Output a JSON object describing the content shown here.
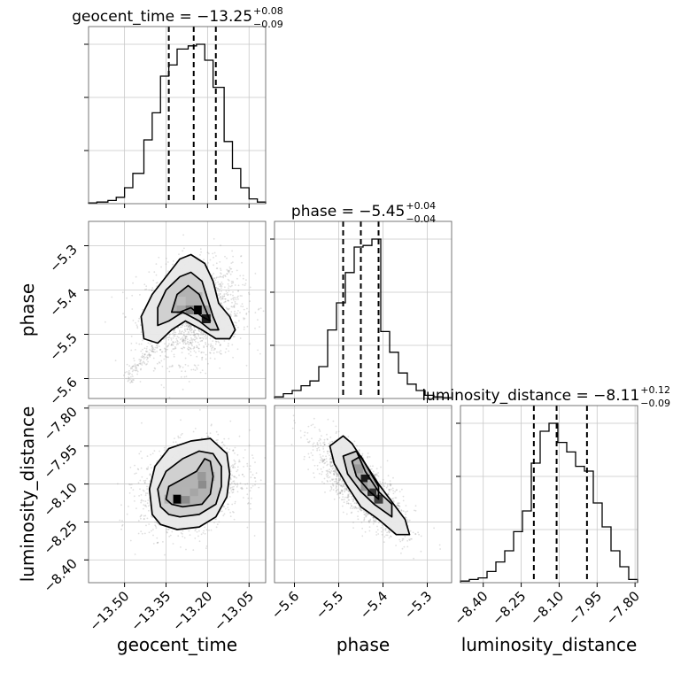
{
  "chart_data": {
    "type": "corner",
    "parameters": [
      "geocent_time",
      "phase",
      "luminosity_distance"
    ],
    "ranges": {
      "geocent_time": [
        -13.63,
        -12.99
      ],
      "phase": [
        -5.645,
        -5.245
      ],
      "luminosity_distance": [
        -8.49,
        -7.79
      ]
    },
    "ticks": {
      "geocent_time": [
        "−13.50",
        "−13.35",
        "−13.20",
        "−13.05"
      ],
      "phase": [
        "−5.6",
        "−5.5",
        "−5.4",
        "−5.3"
      ],
      "luminosity_distance": [
        "−8.40",
        "−8.25",
        "−8.10",
        "−7.95",
        "−7.80"
      ]
    },
    "tick_values": {
      "geocent_time": [
        -13.5,
        -13.35,
        -13.2,
        -13.05
      ],
      "phase": [
        -5.6,
        -5.5,
        -5.4,
        -5.3
      ],
      "luminosity_distance": [
        -8.4,
        -8.25,
        -8.1,
        -7.95,
        -7.8
      ]
    },
    "titles": [
      {
        "param": "geocent_time",
        "prefix": "geocent_time = −13.25",
        "plus": "+0.08",
        "minus": "−0.09"
      },
      {
        "param": "phase",
        "prefix": "phase = −5.45",
        "plus": "+0.04",
        "minus": "−0.04"
      },
      {
        "param": "luminosity_distance",
        "prefix": "luminosity_distance = −8.11",
        "plus": "+0.12",
        "minus": "−0.09"
      }
    ],
    "quantiles": {
      "geocent_time": [
        -13.34,
        -13.25,
        -13.17
      ],
      "phase": [
        -5.49,
        -5.45,
        -5.41
      ],
      "luminosity_distance": [
        -8.2,
        -8.11,
        -7.99
      ]
    },
    "histograms": {
      "geocent_time": {
        "edges": [
          -13.63,
          -13.6,
          -13.56,
          -13.53,
          -13.5,
          -13.47,
          -13.43,
          -13.4,
          -13.37,
          -13.34,
          -13.31,
          -13.27,
          -13.24,
          -13.21,
          -13.18,
          -13.14,
          -13.11,
          -13.08,
          -13.05,
          -13.02,
          -12.99
        ],
        "counts": [
          0.005,
          0.01,
          0.02,
          0.04,
          0.1,
          0.19,
          0.4,
          0.57,
          0.8,
          0.87,
          0.97,
          0.99,
          1.0,
          0.9,
          0.73,
          0.39,
          0.22,
          0.1,
          0.03,
          0.01
        ]
      },
      "phase": {
        "edges": [
          -5.645,
          -5.625,
          -5.605,
          -5.585,
          -5.565,
          -5.545,
          -5.525,
          -5.505,
          -5.485,
          -5.465,
          -5.445,
          -5.425,
          -5.405,
          -5.385,
          -5.365,
          -5.345,
          -5.325,
          -5.305,
          -5.285,
          -5.265,
          -5.245
        ],
        "counts": [
          0.01,
          0.03,
          0.05,
          0.08,
          0.11,
          0.2,
          0.43,
          0.6,
          0.79,
          0.95,
          0.96,
          1.0,
          0.42,
          0.29,
          0.16,
          0.09,
          0.05,
          0.02,
          0.01,
          0.005
        ]
      },
      "luminosity_distance": {
        "edges": [
          -8.49,
          -8.455,
          -8.42,
          -8.385,
          -8.35,
          -8.315,
          -8.28,
          -8.245,
          -8.21,
          -8.175,
          -8.14,
          -8.105,
          -8.07,
          -8.035,
          -8.0,
          -7.965,
          -7.93,
          -7.895,
          -7.86,
          -7.825,
          -7.79
        ],
        "counts": [
          0.01,
          0.02,
          0.03,
          0.07,
          0.13,
          0.2,
          0.32,
          0.45,
          0.75,
          0.95,
          1.0,
          0.88,
          0.82,
          0.73,
          0.7,
          0.5,
          0.35,
          0.2,
          0.1,
          0.02
        ]
      }
    },
    "pairs": [
      {
        "x": "geocent_time",
        "y": "phase",
        "scatter": {
          "cx": -13.25,
          "cy": -5.45,
          "sx": 0.085,
          "sy": 0.055,
          "rho": 0.15
        },
        "tail": {
          "from": [
            -13.38,
            -5.52
          ],
          "to": [
            -13.49,
            -5.6
          ]
        },
        "contours": [
          [
            [
              -13.43,
              -5.51
            ],
            [
              -13.44,
              -5.46
            ],
            [
              -13.4,
              -5.41
            ],
            [
              -13.35,
              -5.37
            ],
            [
              -13.3,
              -5.33
            ],
            [
              -13.26,
              -5.32
            ],
            [
              -13.21,
              -5.34
            ],
            [
              -13.18,
              -5.38
            ],
            [
              -13.16,
              -5.43
            ],
            [
              -13.12,
              -5.46
            ],
            [
              -13.1,
              -5.49
            ],
            [
              -13.12,
              -5.51
            ],
            [
              -13.17,
              -5.51
            ],
            [
              -13.22,
              -5.49
            ],
            [
              -13.28,
              -5.47
            ],
            [
              -13.33,
              -5.49
            ],
            [
              -13.38,
              -5.52
            ]
          ],
          [
            [
              -13.38,
              -5.48
            ],
            [
              -13.38,
              -5.44
            ],
            [
              -13.35,
              -5.4
            ],
            [
              -13.3,
              -5.37
            ],
            [
              -13.26,
              -5.36
            ],
            [
              -13.22,
              -5.38
            ],
            [
              -13.2,
              -5.42
            ],
            [
              -13.18,
              -5.46
            ],
            [
              -13.16,
              -5.49
            ],
            [
              -13.19,
              -5.49
            ],
            [
              -13.23,
              -5.47
            ],
            [
              -13.29,
              -5.45
            ],
            [
              -13.34,
              -5.47
            ]
          ],
          [
            [
              -13.33,
              -5.45
            ],
            [
              -13.31,
              -5.41
            ],
            [
              -13.27,
              -5.39
            ],
            [
              -13.23,
              -5.41
            ],
            [
              -13.21,
              -5.44
            ],
            [
              -13.19,
              -5.47
            ],
            [
              -13.22,
              -5.46
            ],
            [
              -13.26,
              -5.44
            ],
            [
              -13.3,
              -5.45
            ]
          ]
        ],
        "cells": [
          {
            "x": -13.235,
            "y": -5.445,
            "v": 1.0
          },
          {
            "x": -13.205,
            "y": -5.465,
            "v": 0.9
          },
          {
            "x": -13.265,
            "y": -5.445,
            "v": 0.5
          },
          {
            "x": -13.295,
            "y": -5.445,
            "v": 0.35
          },
          {
            "x": -13.265,
            "y": -5.415,
            "v": 0.3
          },
          {
            "x": -13.235,
            "y": -5.415,
            "v": 0.3
          },
          {
            "x": -13.205,
            "y": -5.445,
            "v": 0.35
          },
          {
            "x": -13.295,
            "y": -5.425,
            "v": 0.25
          }
        ]
      },
      {
        "x": "geocent_time",
        "y": "luminosity_distance",
        "scatter": {
          "cx": -13.26,
          "cy": -8.11,
          "sx": 0.09,
          "sy": 0.085,
          "rho": 0.25
        },
        "tail": null,
        "contours": [
          [
            [
              -13.4,
              -8.22
            ],
            [
              -13.41,
              -8.12
            ],
            [
              -13.39,
              -8.03
            ],
            [
              -13.34,
              -7.96
            ],
            [
              -13.26,
              -7.93
            ],
            [
              -13.19,
              -7.92
            ],
            [
              -13.13,
              -7.98
            ],
            [
              -13.12,
              -8.06
            ],
            [
              -13.13,
              -8.15
            ],
            [
              -13.17,
              -8.23
            ],
            [
              -13.23,
              -8.27
            ],
            [
              -13.31,
              -8.28
            ],
            [
              -13.37,
              -8.26
            ]
          ],
          [
            [
              -13.37,
              -8.19
            ],
            [
              -13.38,
              -8.12
            ],
            [
              -13.35,
              -8.05
            ],
            [
              -13.29,
              -8.0
            ],
            [
              -13.23,
              -7.97
            ],
            [
              -13.18,
              -7.98
            ],
            [
              -13.15,
              -8.03
            ],
            [
              -13.15,
              -8.11
            ],
            [
              -13.17,
              -8.18
            ],
            [
              -13.23,
              -8.22
            ],
            [
              -13.3,
              -8.23
            ],
            [
              -13.34,
              -8.22
            ]
          ],
          [
            [
              -13.35,
              -8.16
            ],
            [
              -13.34,
              -8.11
            ],
            [
              -13.29,
              -8.08
            ],
            [
              -13.24,
              -8.05
            ],
            [
              -13.21,
              -8.0
            ],
            [
              -13.19,
              -8.01
            ],
            [
              -13.18,
              -8.07
            ],
            [
              -13.19,
              -8.14
            ],
            [
              -13.22,
              -8.18
            ],
            [
              -13.29,
              -8.19
            ],
            [
              -13.33,
              -8.18
            ]
          ]
        ],
        "cells": [
          {
            "x": -13.31,
            "y": -8.16,
            "v": 1.0
          },
          {
            "x": -13.28,
            "y": -8.16,
            "v": 0.45
          },
          {
            "x": -13.34,
            "y": -8.16,
            "v": 0.3
          },
          {
            "x": -13.25,
            "y": -8.13,
            "v": 0.35
          },
          {
            "x": -13.22,
            "y": -8.1,
            "v": 0.45
          },
          {
            "x": -13.22,
            "y": -8.07,
            "v": 0.4
          },
          {
            "x": -13.19,
            "y": -8.07,
            "v": 0.3
          },
          {
            "x": -13.28,
            "y": -8.13,
            "v": 0.3
          },
          {
            "x": -13.25,
            "y": -8.1,
            "v": 0.3
          }
        ]
      },
      {
        "x": "phase",
        "y": "luminosity_distance",
        "scatter": {
          "cx": -5.45,
          "cy": -8.11,
          "sx": 0.05,
          "sy": 0.09,
          "rho": -0.78
        },
        "tail": null,
        "contours": [
          [
            [
              -5.52,
              -7.95
            ],
            [
              -5.51,
              -8.02
            ],
            [
              -5.48,
              -8.11
            ],
            [
              -5.45,
              -8.19
            ],
            [
              -5.41,
              -8.24
            ],
            [
              -5.37,
              -8.3
            ],
            [
              -5.34,
              -8.3
            ],
            [
              -5.35,
              -8.24
            ],
            [
              -5.38,
              -8.17
            ],
            [
              -5.41,
              -8.1
            ],
            [
              -5.44,
              -8.02
            ],
            [
              -5.47,
              -7.94
            ],
            [
              -5.49,
              -7.91
            ]
          ],
          [
            [
              -5.49,
              -7.99
            ],
            [
              -5.48,
              -8.06
            ],
            [
              -5.45,
              -8.13
            ],
            [
              -5.42,
              -8.18
            ],
            [
              -5.38,
              -8.23
            ],
            [
              -5.38,
              -8.18
            ],
            [
              -5.41,
              -8.13
            ],
            [
              -5.44,
              -8.05
            ],
            [
              -5.46,
              -7.97
            ]
          ],
          [
            [
              -5.47,
              -8.01
            ],
            [
              -5.46,
              -8.07
            ],
            [
              -5.43,
              -8.13
            ],
            [
              -5.41,
              -8.16
            ],
            [
              -5.41,
              -8.11
            ],
            [
              -5.43,
              -8.05
            ],
            [
              -5.45,
              -7.99
            ]
          ]
        ],
        "cells": [
          {
            "x": -5.44,
            "y": -8.08,
            "v": 0.9
          },
          {
            "x": -5.425,
            "y": -8.13,
            "v": 0.8
          },
          {
            "x": -5.41,
            "y": -8.16,
            "v": 0.75
          },
          {
            "x": -5.455,
            "y": -8.04,
            "v": 0.4
          },
          {
            "x": -5.44,
            "y": -8.11,
            "v": 0.4
          },
          {
            "x": -5.425,
            "y": -8.1,
            "v": 0.3
          }
        ]
      }
    ],
    "axis_labels": {
      "x": [
        "geocent_time",
        "phase",
        "luminosity_distance"
      ],
      "y": [
        "phase",
        "luminosity_distance"
      ]
    },
    "grid": true,
    "legend": "none",
    "colors": {
      "line": "#000000",
      "scatter": "#8c8c8c",
      "grid": "#c8c8c8",
      "cell_dark": "#000000"
    }
  }
}
